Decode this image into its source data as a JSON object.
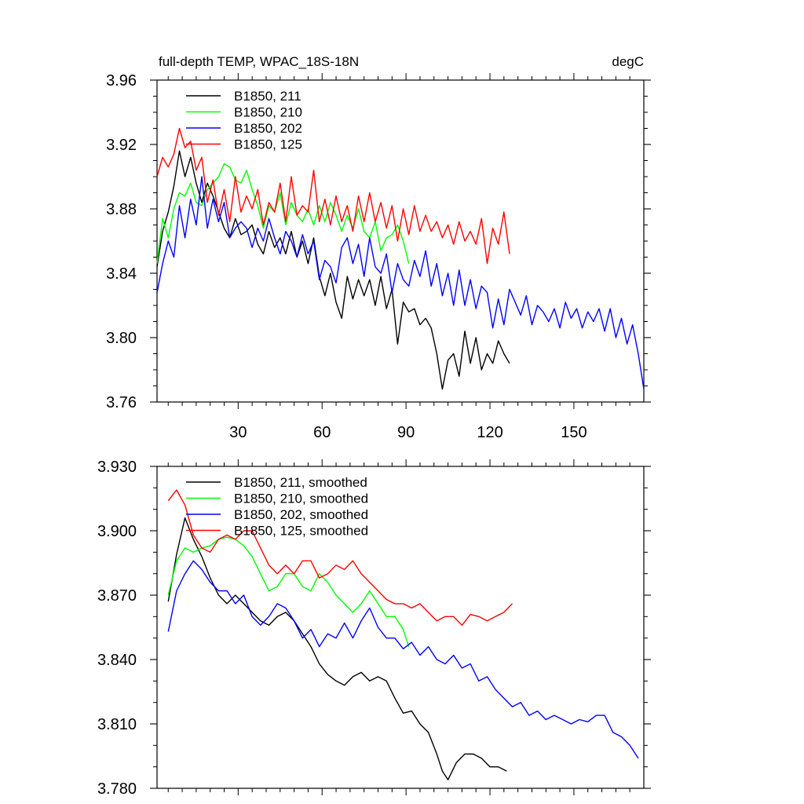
{
  "chart_data": [
    {
      "type": "line",
      "title_left": "full-depth TEMP, WPAC_18S-18N",
      "title_right": "degC",
      "xlim": [
        1,
        175
      ],
      "ylim": [
        3.76,
        3.96
      ],
      "x_ticks": [
        30,
        60,
        90,
        120,
        150
      ],
      "x_tick_labels": [
        "30",
        "60",
        "90",
        "120",
        "150"
      ],
      "y_ticks": [
        3.76,
        3.8,
        3.84,
        3.88,
        3.92,
        3.96
      ],
      "y_tick_labels": [
        "3.76",
        "3.80",
        "3.84",
        "3.88",
        "3.92",
        "3.96"
      ],
      "legend_position": "top-left",
      "series": [
        {
          "name": "B1850, 211",
          "color": "#000000",
          "x": [
            1,
            3,
            5,
            7,
            9,
            11,
            13,
            15,
            17,
            19,
            21,
            23,
            25,
            27,
            29,
            31,
            33,
            35,
            37,
            39,
            41,
            43,
            45,
            47,
            49,
            51,
            53,
            55,
            57,
            59,
            61,
            63,
            65,
            67,
            69,
            71,
            73,
            75,
            77,
            79,
            81,
            83,
            85,
            87,
            89,
            91,
            93,
            95,
            97,
            99,
            101,
            103,
            105,
            107,
            109,
            111,
            113,
            115,
            117,
            119,
            121,
            123,
            125,
            127
          ],
          "values": [
            3.844,
            3.866,
            3.878,
            3.894,
            3.916,
            3.9,
            3.912,
            3.896,
            3.884,
            3.896,
            3.888,
            3.878,
            3.868,
            3.862,
            3.874,
            3.864,
            3.866,
            3.87,
            3.858,
            3.852,
            3.866,
            3.856,
            3.862,
            3.852,
            3.866,
            3.85,
            3.86,
            3.846,
            3.862,
            3.838,
            3.826,
            3.84,
            3.822,
            3.812,
            3.838,
            3.824,
            3.836,
            3.826,
            3.836,
            3.82,
            3.838,
            3.818,
            3.83,
            3.796,
            3.822,
            3.816,
            3.818,
            3.808,
            3.812,
            3.806,
            3.79,
            3.768,
            3.786,
            3.79,
            3.776,
            3.804,
            3.784,
            3.8,
            3.78,
            3.79,
            3.784,
            3.798,
            3.79,
            3.784
          ]
        },
        {
          "name": "B1850, 210",
          "color": "#00ff00",
          "x": [
            1,
            3,
            5,
            7,
            9,
            11,
            13,
            15,
            17,
            19,
            21,
            23,
            25,
            27,
            29,
            31,
            33,
            35,
            37,
            39,
            41,
            43,
            45,
            47,
            49,
            51,
            53,
            55,
            57,
            59,
            61,
            63,
            65,
            67,
            69,
            71,
            73,
            75,
            77,
            79,
            81,
            83,
            85,
            87,
            89,
            91
          ],
          "values": [
            3.846,
            3.874,
            3.862,
            3.88,
            3.89,
            3.888,
            3.896,
            3.884,
            3.882,
            3.892,
            3.896,
            3.9,
            3.908,
            3.906,
            3.898,
            3.896,
            3.904,
            3.892,
            3.882,
            3.868,
            3.882,
            3.878,
            3.89,
            3.87,
            3.884,
            3.876,
            3.872,
            3.88,
            3.87,
            3.882,
            3.872,
            3.884,
            3.876,
            3.866,
            3.876,
            3.868,
            3.88,
            3.866,
            3.862,
            3.872,
            3.854,
            3.862,
            3.864,
            3.87,
            3.86,
            3.846
          ]
        },
        {
          "name": "B1850, 202",
          "color": "#0000ff",
          "x": [
            1,
            3,
            5,
            7,
            9,
            11,
            13,
            15,
            17,
            19,
            21,
            23,
            25,
            27,
            29,
            31,
            33,
            35,
            37,
            39,
            41,
            43,
            45,
            47,
            49,
            51,
            53,
            55,
            57,
            59,
            61,
            63,
            65,
            67,
            69,
            71,
            73,
            75,
            77,
            79,
            81,
            83,
            85,
            87,
            89,
            91,
            93,
            95,
            97,
            99,
            101,
            103,
            105,
            107,
            109,
            111,
            113,
            115,
            117,
            119,
            121,
            123,
            125,
            127,
            129,
            131,
            133,
            135,
            137,
            139,
            141,
            143,
            145,
            147,
            149,
            151,
            153,
            155,
            157,
            159,
            161,
            163,
            165,
            167,
            169,
            171,
            173,
            175
          ],
          "values": [
            3.828,
            3.846,
            3.86,
            3.85,
            3.882,
            3.862,
            3.886,
            3.87,
            3.9,
            3.868,
            3.886,
            3.872,
            3.884,
            3.862,
            3.868,
            3.872,
            3.868,
            3.856,
            3.868,
            3.86,
            3.874,
            3.862,
            3.852,
            3.866,
            3.86,
            3.85,
            3.864,
            3.852,
            3.86,
            3.836,
            3.848,
            3.844,
            3.834,
            3.856,
            3.862,
            3.846,
            3.858,
            3.838,
            3.862,
            3.844,
            3.84,
            3.852,
            3.828,
            3.846,
            3.836,
            3.832,
            3.848,
            3.838,
            3.854,
            3.832,
            3.846,
            3.826,
            3.84,
            3.82,
            3.842,
            3.82,
            3.836,
            3.818,
            3.832,
            3.828,
            3.806,
            3.824,
            3.808,
            3.83,
            3.822,
            3.814,
            3.826,
            3.808,
            3.82,
            3.816,
            3.81,
            3.818,
            3.806,
            3.822,
            3.812,
            3.818,
            3.806,
            3.816,
            3.81,
            3.818,
            3.804,
            3.818,
            3.8,
            3.812,
            3.796,
            3.808,
            3.79,
            3.768
          ]
        },
        {
          "name": "B1850, 125",
          "color": "#ff0000",
          "x": [
            1,
            3,
            5,
            7,
            9,
            11,
            13,
            15,
            17,
            19,
            21,
            23,
            25,
            27,
            29,
            31,
            33,
            35,
            37,
            39,
            41,
            43,
            45,
            47,
            49,
            51,
            53,
            55,
            57,
            59,
            61,
            63,
            65,
            67,
            69,
            71,
            73,
            75,
            77,
            79,
            81,
            83,
            85,
            87,
            89,
            91,
            93,
            95,
            97,
            99,
            101,
            103,
            105,
            107,
            109,
            111,
            113,
            115,
            117,
            119,
            121,
            123,
            125,
            127
          ],
          "values": [
            3.9,
            3.912,
            3.906,
            3.914,
            3.93,
            3.918,
            3.922,
            3.904,
            3.912,
            3.884,
            3.898,
            3.876,
            3.892,
            3.872,
            3.9,
            3.878,
            3.888,
            3.88,
            3.892,
            3.87,
            3.884,
            3.878,
            3.896,
            3.872,
            3.9,
            3.876,
            3.882,
            3.878,
            3.904,
            3.872,
            3.886,
            3.87,
            3.888,
            3.872,
            3.882,
            3.866,
            3.888,
            3.872,
            3.89,
            3.872,
            3.884,
            3.868,
            3.882,
            3.86,
            3.88,
            3.864,
            3.882,
            3.866,
            3.876,
            3.866,
            3.872,
            3.862,
            3.87,
            3.858,
            3.872,
            3.86,
            3.866,
            3.858,
            3.874,
            3.846,
            3.868,
            3.858,
            3.878,
            3.852
          ]
        }
      ]
    },
    {
      "type": "line",
      "title_left": "",
      "title_right": "",
      "xlim": [
        1,
        175
      ],
      "ylim": [
        3.78,
        3.93
      ],
      "y_ticks": [
        3.78,
        3.81,
        3.84,
        3.87,
        3.9,
        3.93
      ],
      "y_tick_labels": [
        "3.780",
        "3.810",
        "3.840",
        "3.870",
        "3.900",
        "3.930"
      ],
      "legend_position": "top-left",
      "series": [
        {
          "name": "B1850, 211, smoothed",
          "color": "#000000",
          "x": [
            5,
            8,
            11,
            14,
            17,
            20,
            23,
            26,
            29,
            32,
            35,
            38,
            41,
            44,
            47,
            50,
            53,
            56,
            59,
            62,
            65,
            68,
            71,
            74,
            77,
            80,
            83,
            86,
            89,
            92,
            95,
            98,
            101,
            103,
            105,
            108,
            111,
            114,
            117,
            120,
            123,
            126
          ],
          "values": [
            3.867,
            3.889,
            3.906,
            3.896,
            3.888,
            3.878,
            3.87,
            3.866,
            3.87,
            3.866,
            3.862,
            3.858,
            3.856,
            3.86,
            3.862,
            3.858,
            3.852,
            3.846,
            3.838,
            3.833,
            3.83,
            3.828,
            3.832,
            3.834,
            3.83,
            3.832,
            3.83,
            3.822,
            3.815,
            3.816,
            3.81,
            3.806,
            3.796,
            3.788,
            3.784,
            3.792,
            3.796,
            3.796,
            3.794,
            3.79,
            3.79,
            3.788
          ]
        },
        {
          "name": "B1850, 210, smoothed",
          "color": "#00ff00",
          "x": [
            5,
            8,
            11,
            14,
            17,
            20,
            23,
            26,
            29,
            32,
            35,
            38,
            41,
            44,
            47,
            50,
            53,
            56,
            59,
            62,
            65,
            68,
            71,
            74,
            77,
            80,
            83,
            86,
            89,
            91
          ],
          "values": [
            3.87,
            3.886,
            3.892,
            3.89,
            3.892,
            3.893,
            3.896,
            3.897,
            3.896,
            3.893,
            3.888,
            3.88,
            3.872,
            3.874,
            3.88,
            3.88,
            3.874,
            3.872,
            3.88,
            3.876,
            3.87,
            3.866,
            3.862,
            3.866,
            3.872,
            3.866,
            3.86,
            3.86,
            3.854,
            3.846
          ]
        },
        {
          "name": "B1850, 202, smoothed",
          "color": "#0000ff",
          "x": [
            5,
            8,
            11,
            14,
            17,
            20,
            23,
            26,
            29,
            32,
            35,
            38,
            41,
            44,
            47,
            50,
            53,
            56,
            59,
            62,
            65,
            68,
            71,
            74,
            77,
            80,
            83,
            86,
            89,
            92,
            95,
            98,
            101,
            104,
            107,
            110,
            113,
            116,
            119,
            122,
            125,
            128,
            131,
            134,
            137,
            140,
            143,
            146,
            149,
            152,
            155,
            158,
            161,
            164,
            167,
            170,
            173
          ],
          "values": [
            3.853,
            3.872,
            3.88,
            3.886,
            3.882,
            3.876,
            3.872,
            3.872,
            3.866,
            3.87,
            3.86,
            3.856,
            3.86,
            3.866,
            3.864,
            3.858,
            3.85,
            3.854,
            3.846,
            3.852,
            3.85,
            3.857,
            3.85,
            3.858,
            3.864,
            3.855,
            3.85,
            3.85,
            3.845,
            3.848,
            3.842,
            3.846,
            3.84,
            3.838,
            3.842,
            3.836,
            3.838,
            3.83,
            3.832,
            3.826,
            3.822,
            3.818,
            3.82,
            3.814,
            3.816,
            3.812,
            3.814,
            3.812,
            3.81,
            3.812,
            3.811,
            3.814,
            3.814,
            3.806,
            3.804,
            3.8,
            3.794
          ]
        },
        {
          "name": "B1850, 125, smoothed",
          "color": "#ff0000",
          "x": [
            5,
            8,
            11,
            14,
            17,
            20,
            23,
            26,
            29,
            32,
            35,
            38,
            41,
            44,
            47,
            50,
            53,
            56,
            59,
            62,
            65,
            68,
            71,
            74,
            77,
            80,
            83,
            86,
            89,
            92,
            95,
            98,
            101,
            104,
            107,
            110,
            113,
            116,
            119,
            122,
            125,
            128
          ],
          "values": [
            3.914,
            3.919,
            3.912,
            3.898,
            3.892,
            3.89,
            3.896,
            3.898,
            3.896,
            3.9,
            3.9,
            3.892,
            3.884,
            3.88,
            3.884,
            3.88,
            3.886,
            3.886,
            3.878,
            3.88,
            3.884,
            3.882,
            3.886,
            3.88,
            3.876,
            3.872,
            3.868,
            3.866,
            3.866,
            3.864,
            3.866,
            3.862,
            3.858,
            3.86,
            3.86,
            3.856,
            3.861,
            3.86,
            3.858,
            3.86,
            3.862,
            3.866
          ]
        }
      ]
    }
  ]
}
